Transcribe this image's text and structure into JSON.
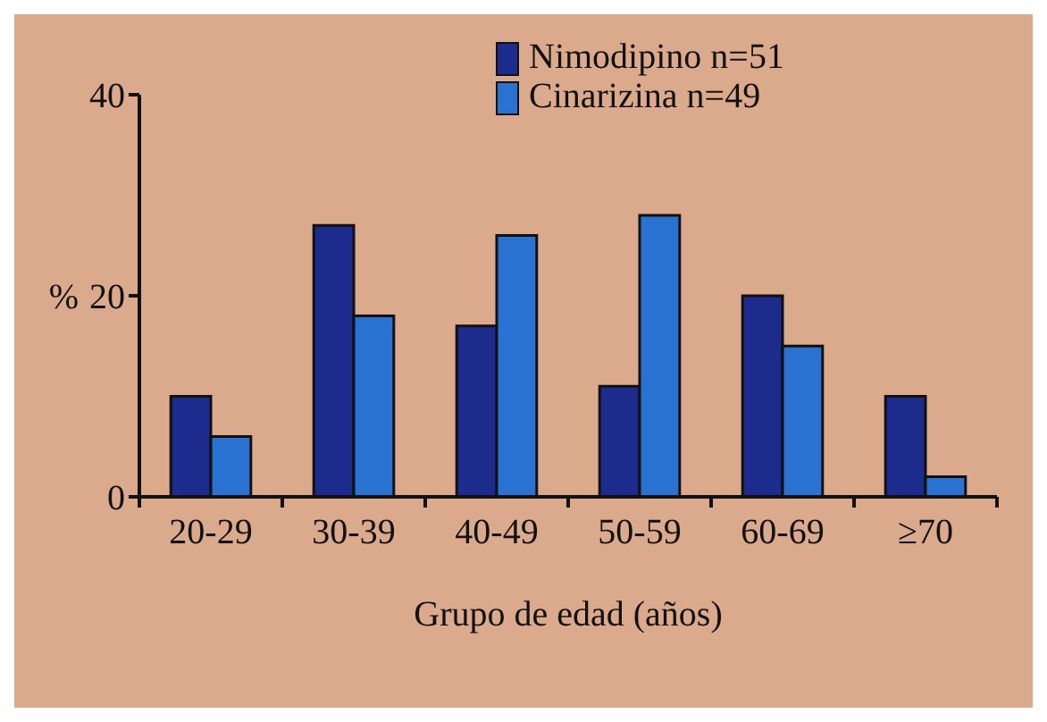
{
  "chart_data": {
    "type": "bar",
    "xlabel": "Grupo de edad (años)",
    "ylabel": "%",
    "categories": [
      "20-29",
      "30-39",
      "40-49",
      "50-59",
      "60-69",
      "≥70"
    ],
    "series": [
      {
        "name": "Nimodipino n=51",
        "color": "#1c2b8c",
        "values": [
          10,
          27,
          17,
          11,
          20,
          10
        ]
      },
      {
        "name": "Cinarizina n=49",
        "color": "#2a72d2",
        "values": [
          6,
          18,
          26,
          28,
          15,
          2
        ]
      }
    ],
    "ylim": [
      0,
      40
    ],
    "yticks": [
      0,
      20,
      40
    ],
    "legend": "top right",
    "grid": false
  }
}
